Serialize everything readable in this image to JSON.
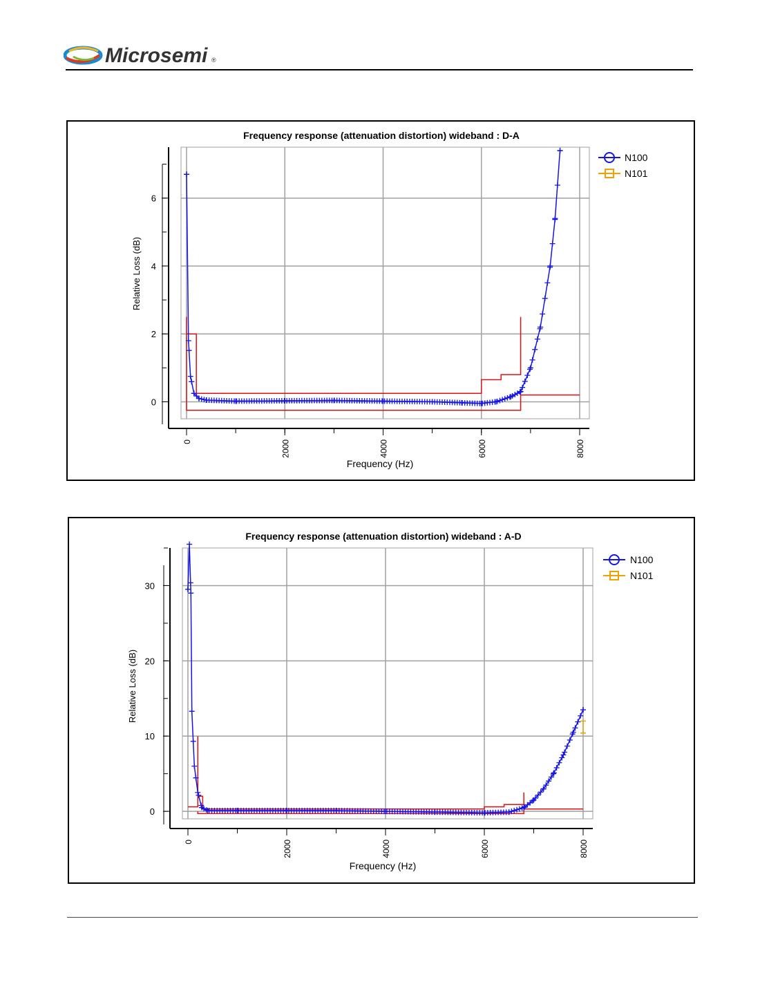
{
  "header": {
    "brand_name": "Microsemi",
    "brand_mark": "®"
  },
  "colors": {
    "n100": "#1414e6",
    "n101": "#f0a000",
    "mask": "#e01010",
    "grid": "#a0a0a0"
  },
  "chart_data": [
    {
      "type": "line",
      "title": "Frequency response (attenuation distortion) wideband : D-A",
      "xlabel": "Frequency (Hz)",
      "ylabel": "Relative Loss (dB)",
      "xlim": [
        0,
        8000
      ],
      "ylim": [
        -0.5,
        7.5
      ],
      "x_ticks": [
        "0",
        "2000",
        "4000",
        "6000",
        "8000"
      ],
      "y_ticks": [
        "0",
        "2",
        "4",
        "6"
      ],
      "grid": true,
      "legend_position": "top-right",
      "series": [
        {
          "name": "N100",
          "marker": "plus",
          "points": [
            [
              0,
              6.7
            ],
            [
              40,
              1.8
            ],
            [
              80,
              0.75
            ],
            [
              150,
              0.25
            ],
            [
              250,
              0.1
            ],
            [
              400,
              0.05
            ],
            [
              1000,
              0.02
            ],
            [
              2000,
              0.03
            ],
            [
              3000,
              0.04
            ],
            [
              4000,
              0.02
            ],
            [
              5000,
              0.0
            ],
            [
              5600,
              -0.03
            ],
            [
              6000,
              -0.05
            ],
            [
              6300,
              0.0
            ],
            [
              6600,
              0.15
            ],
            [
              6800,
              0.3
            ],
            [
              7000,
              1.0
            ],
            [
              7200,
              2.2
            ],
            [
              7400,
              4.0
            ],
            [
              7500,
              5.4
            ],
            [
              7600,
              7.4
            ]
          ]
        },
        {
          "name": "N101",
          "marker": "square",
          "points": []
        }
      ],
      "mask_upper": [
        [
          0,
          2.0
        ],
        [
          200,
          2.0
        ],
        [
          200,
          0.25
        ],
        [
          6000,
          0.25
        ],
        [
          6000,
          0.65
        ],
        [
          6400,
          0.65
        ],
        [
          6400,
          0.8
        ],
        [
          6800,
          0.8
        ],
        [
          6800,
          2.5
        ]
      ],
      "mask_upper_left": [
        [
          0,
          2.5
        ],
        [
          0,
          0.5
        ]
      ],
      "mask_lower": [
        [
          0,
          0.5
        ],
        [
          0,
          -0.25
        ],
        [
          6800,
          -0.25
        ],
        [
          6800,
          0.2
        ],
        [
          8000,
          0.2
        ]
      ]
    },
    {
      "type": "line",
      "title": "Frequency response (attenuation distortion) wideband : A-D",
      "xlabel": "Frequency (Hz)",
      "ylabel": "Relative Loss (dB)",
      "xlim": [
        0,
        8000
      ],
      "ylim": [
        -1,
        35
      ],
      "x_ticks": [
        "0",
        "2000",
        "4000",
        "6000",
        "8000"
      ],
      "y_ticks": [
        "0",
        "10",
        "20",
        "30"
      ],
      "grid": true,
      "legend_position": "top-right",
      "series": [
        {
          "name": "N100",
          "marker": "plus",
          "points": [
            [
              0,
              29.5
            ],
            [
              30,
              35.5
            ],
            [
              60,
              29.0
            ],
            [
              80,
              13.3
            ],
            [
              130,
              6.0
            ],
            [
              200,
              2.5
            ],
            [
              280,
              0.5
            ],
            [
              400,
              0.1
            ],
            [
              1000,
              0.1
            ],
            [
              2000,
              0.1
            ],
            [
              3000,
              0.1
            ],
            [
              4000,
              0.0
            ],
            [
              5000,
              -0.1
            ],
            [
              6000,
              -0.2
            ],
            [
              6500,
              -0.1
            ],
            [
              6800,
              0.5
            ],
            [
              7000,
              1.5
            ],
            [
              7200,
              3.0
            ],
            [
              7400,
              5.0
            ],
            [
              7600,
              7.5
            ],
            [
              7800,
              10.5
            ],
            [
              8000,
              13.5
            ]
          ]
        },
        {
          "name": "N101",
          "marker": "square",
          "points": [
            [
              8000,
              12.0
            ],
            [
              8000,
              10.4
            ]
          ]
        }
      ],
      "mask_upper": [
        [
          0,
          0.6
        ],
        [
          200,
          0.6
        ],
        [
          200,
          10.0
        ],
        [
          200,
          2.0
        ],
        [
          300,
          2.0
        ],
        [
          300,
          0.3
        ],
        [
          6000,
          0.3
        ],
        [
          6000,
          0.6
        ],
        [
          6400,
          0.6
        ],
        [
          6400,
          0.9
        ],
        [
          6800,
          0.9
        ],
        [
          6800,
          2.5
        ]
      ],
      "mask_lower": [
        [
          200,
          0.0
        ],
        [
          200,
          -0.3
        ],
        [
          6800,
          -0.3
        ],
        [
          6800,
          0.3
        ],
        [
          8000,
          0.3
        ]
      ]
    }
  ]
}
